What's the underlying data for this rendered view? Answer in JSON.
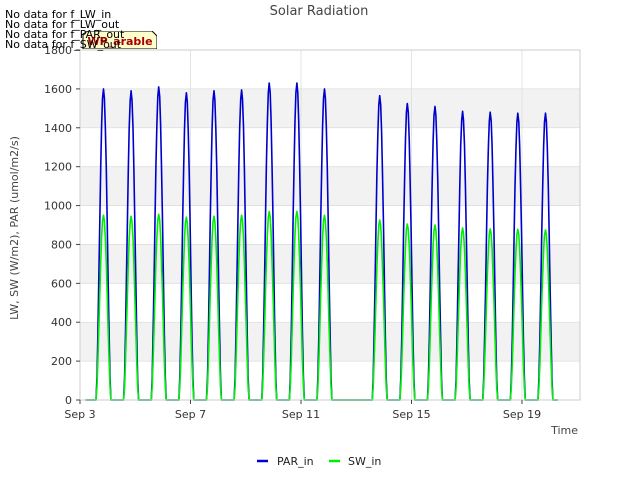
{
  "chart_data": {
    "type": "line",
    "title": "Solar Radiation",
    "xlabel": "Time",
    "ylabel": "LW, SW (W/m2), PAR (umol/m2/s)",
    "ylim": [
      0,
      1800
    ],
    "yticks": [
      0,
      200,
      400,
      600,
      800,
      1000,
      1200,
      1400,
      1600,
      1800
    ],
    "xticks": [
      "Sep 3",
      "Sep 7",
      "Sep 11",
      "Sep 15",
      "Sep 19"
    ],
    "xtick_days": [
      3,
      7,
      11,
      15,
      19
    ],
    "xlim_days": [
      3,
      21.1
    ],
    "grid": true,
    "legend_position": "bottom-center",
    "badge": "WP_arable",
    "no_data_messages": [
      "No data for f_LW_in",
      "No data for f_LW_out",
      "No data for f_PAR_out",
      "No data for f_SW_out"
    ],
    "series": [
      {
        "name": "PAR_in",
        "color": "#0000cc",
        "daily_peaks": [
          {
            "day": 3.85,
            "peak": 1600
          },
          {
            "day": 4.85,
            "peak": 1590
          },
          {
            "day": 5.85,
            "peak": 1610
          },
          {
            "day": 6.85,
            "peak": 1580
          },
          {
            "day": 7.85,
            "peak": 1590
          },
          {
            "day": 8.85,
            "peak": 1595
          },
          {
            "day": 9.85,
            "peak": 1630
          },
          {
            "day": 10.85,
            "peak": 1630
          },
          {
            "day": 11.85,
            "peak": 1600
          },
          {
            "day": 13.85,
            "peak": 1565
          },
          {
            "day": 14.85,
            "peak": 1525
          },
          {
            "day": 15.85,
            "peak": 1510
          },
          {
            "day": 16.85,
            "peak": 1485
          },
          {
            "day": 17.85,
            "peak": 1480
          },
          {
            "day": 18.85,
            "peak": 1475
          },
          {
            "day": 19.85,
            "peak": 1475
          }
        ]
      },
      {
        "name": "SW_in",
        "color": "#00ee00",
        "daily_peaks": [
          {
            "day": 3.85,
            "peak": 950
          },
          {
            "day": 4.85,
            "peak": 945
          },
          {
            "day": 5.85,
            "peak": 955
          },
          {
            "day": 6.85,
            "peak": 940
          },
          {
            "day": 7.85,
            "peak": 945
          },
          {
            "day": 8.85,
            "peak": 950
          },
          {
            "day": 9.85,
            "peak": 970
          },
          {
            "day": 10.85,
            "peak": 970
          },
          {
            "day": 11.85,
            "peak": 950
          },
          {
            "day": 13.85,
            "peak": 925
          },
          {
            "day": 14.85,
            "peak": 905
          },
          {
            "day": 15.85,
            "peak": 900
          },
          {
            "day": 16.85,
            "peak": 885
          },
          {
            "day": 17.85,
            "peak": 880
          },
          {
            "day": 18.85,
            "peak": 878
          },
          {
            "day": 19.85,
            "peak": 875
          }
        ]
      }
    ]
  }
}
